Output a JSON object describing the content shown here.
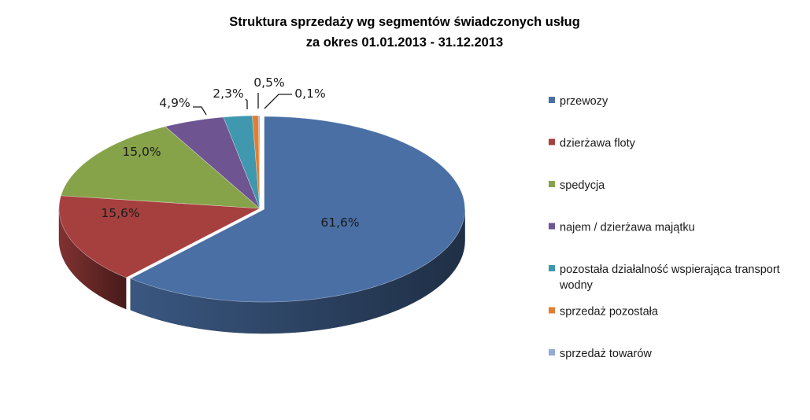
{
  "chart_data": {
    "type": "pie",
    "style": "3d-exploded-tilt",
    "title": [
      "Struktura sprzedaży  wg segmentów świadczonych usług",
      "za okres 01.01.2013  - 31.12.2013"
    ],
    "categories": [
      "przewozy",
      "dzierżawa floty",
      "spedycja",
      "najem / dzierżawa majątku",
      "pozostała działalność wspierająca transport wodny",
      "sprzedaż pozostała",
      "sprzedaż towarów"
    ],
    "legend_lines": [
      [
        "przewozy"
      ],
      [
        "dzierżawa floty"
      ],
      [
        "spedycja"
      ],
      [
        "najem / dzierżawa majątku"
      ],
      [
        "pozostała działalność wspierająca transport",
        "wodny"
      ],
      [
        "sprzedaż pozostała"
      ],
      [
        "sprzedaż towarów"
      ]
    ],
    "values": [
      61.6,
      15.6,
      15.0,
      4.9,
      2.3,
      0.5,
      0.1
    ],
    "labels": [
      "61,6%",
      "15,6%",
      "15,0%",
      "4,9%",
      "2,3%",
      "0,5%",
      "0,1%"
    ],
    "colors": [
      "#4a6fa5",
      "#a6403f",
      "#86a34a",
      "#6e5491",
      "#3f98ad",
      "#e07f34",
      "#94acd4"
    ],
    "legend_position": "right"
  }
}
